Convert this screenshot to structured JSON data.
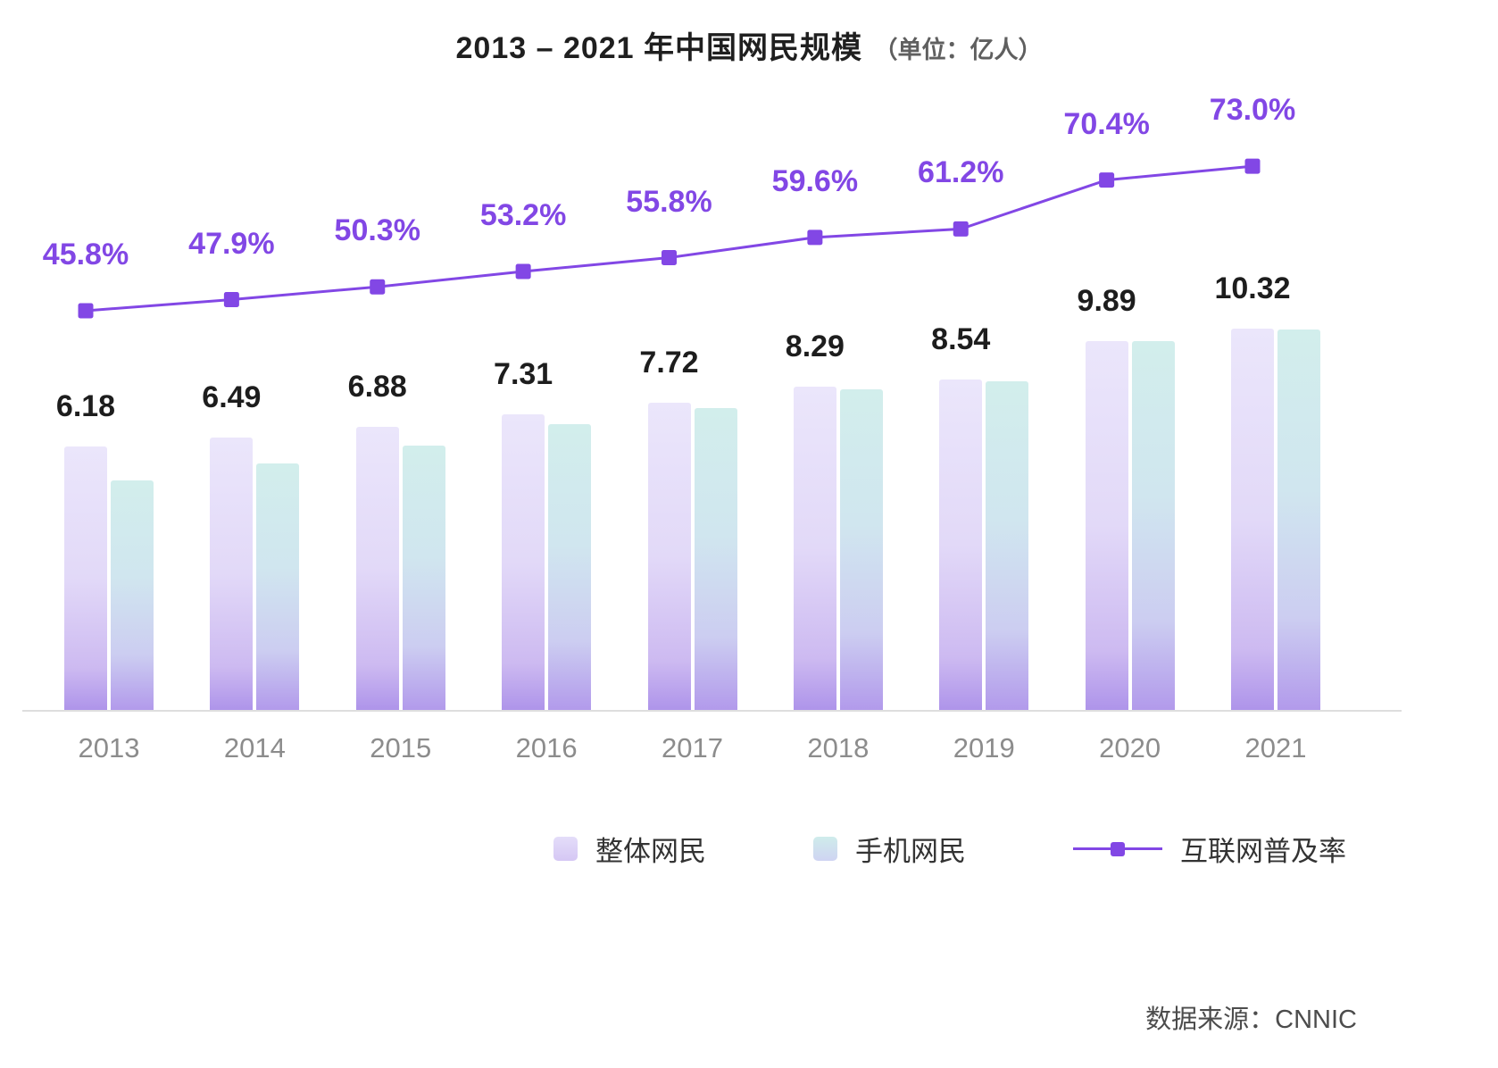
{
  "title": {
    "main": "2013 – 2021 年中国网民规模",
    "unit": "（单位：亿人）"
  },
  "legend": [
    {
      "label": "整体网民",
      "type": "bar",
      "color": "#d9cdf5"
    },
    {
      "label": "手机网民",
      "type": "bar",
      "color": "#cfeceb"
    },
    {
      "label": "互联网普及率",
      "type": "line",
      "color": "#8247e5"
    }
  ],
  "source": "数据来源：CNNIC",
  "colors": {
    "line": "#8247e5",
    "bar_total_top": "#ebe6fb",
    "bar_total_bottom": "#ae94ea",
    "bar_mobile_top": "#d2eeec",
    "bar_mobile_bottom": "#b29aeb",
    "value_text": "#1d1d1d",
    "percent_text": "#8247e5",
    "year_text": "#8c8c8c"
  },
  "chart_data": {
    "type": "bar",
    "subtype": "grouped bars with overlay line",
    "title": "2013 – 2021 年中国网民规模（单位：亿人）",
    "categories": [
      "2013",
      "2014",
      "2015",
      "2016",
      "2017",
      "2018",
      "2019",
      "2020",
      "2021"
    ],
    "series": [
      {
        "name": "整体网民",
        "type": "bar",
        "unit": "亿人",
        "values": [
          6.18,
          6.49,
          6.88,
          7.31,
          7.72,
          8.29,
          8.54,
          9.89,
          10.32
        ],
        "data_labels_shown": true
      },
      {
        "name": "手机网民",
        "type": "bar",
        "unit": "亿人",
        "values": [
          5.0,
          5.57,
          6.2,
          6.95,
          7.53,
          8.17,
          8.47,
          9.86,
          10.29
        ],
        "data_labels_shown": false
      },
      {
        "name": "互联网普及率",
        "type": "line",
        "unit": "%",
        "values": [
          45.8,
          47.9,
          50.3,
          53.2,
          55.8,
          59.6,
          61.2,
          70.4,
          73.0
        ],
        "data_labels_shown": true
      }
    ],
    "xlabel": "",
    "ylabel": "",
    "grid": false,
    "legend_position": "bottom",
    "source": "数据来源：CNNIC"
  }
}
